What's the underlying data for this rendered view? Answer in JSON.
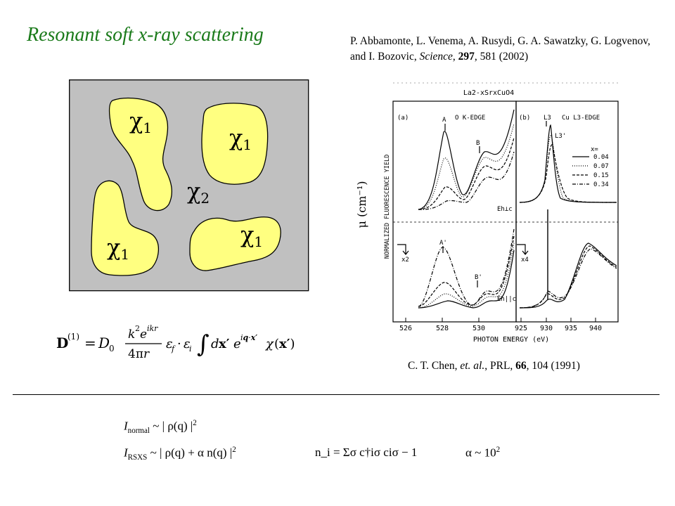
{
  "title": "Resonant soft x-ray scattering",
  "reference_top": {
    "authors": "P. Abbamonte, L. Venema, A. Rusydi, G. A. Sawatzky, G. Logvenov, and I. Bozovic, ",
    "journal": "Science",
    "volume": "297",
    "pages": ", 581 (2002)"
  },
  "reference_bottom": {
    "authors": "C. T. Chen, ",
    "etal": "et. al.",
    "journal": ", PRL, ",
    "volume": "66",
    "pages": ", 104 (1991)"
  },
  "domain_diagram": {
    "background_color": "#c0c0c0",
    "domain_color": "#ffff80",
    "labels": [
      "χ1",
      "χ1",
      "χ2",
      "χ1",
      "χ1"
    ]
  },
  "scattering_formula": "D(1) = D0 (k² e^{ikr} / 4πr) εf · εi ∫ dx′ e^{iq·x′} χ(x′)",
  "plot": {
    "header": "La2-xSrxCuO4",
    "panel_a": "(a)",
    "panel_a_title": "O  K-EDGE",
    "panel_b": "(b)",
    "panel_b_title": "Cu  L3-EDGE",
    "ylabel": "NORMALIZED FLUORESCENCE YIELD",
    "xlabel": "PHOTON ENERGY (eV)",
    "mu_label": "μ (cm⁻¹)",
    "legend_title": "x=",
    "legend": [
      "0.04",
      "0.07",
      "0.15",
      "0.34"
    ],
    "ticks_a": [
      "526",
      "528",
      "530"
    ],
    "ticks_b": [
      "925",
      "930",
      "935",
      "940"
    ],
    "labels": {
      "A": "A",
      "B": "B",
      "A_prime": "A'",
      "B_prime": "B'",
      "L3": "L3",
      "L3_prime": "L3'",
      "perp": "Eh⊥c",
      "para": "Eh||c",
      "x2": "x2",
      "x4": "x4"
    }
  },
  "equations": {
    "normal_lhs": "I",
    "normal_sub": "normal",
    "normal_rhs": " ~ | ρ(q) |",
    "normal_pow": "2",
    "rsxs_lhs": "I",
    "rsxs_sub": "RSXS",
    "rsxs_rhs": " ~ | ρ(q) + α n(q) |",
    "rsxs_pow": "2",
    "n_def": "n_i = Σσ c†iσ ciσ − 1",
    "alpha": "α ~ 10",
    "alpha_pow": "2"
  }
}
